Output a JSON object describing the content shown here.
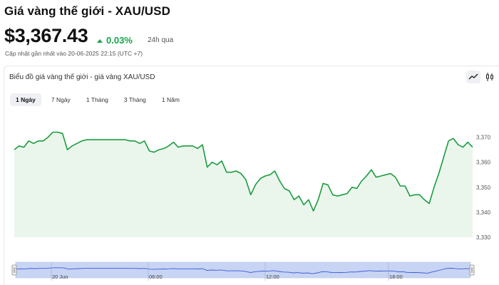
{
  "header": {
    "title": "Giá vàng thế giới - XAU/USD",
    "price": "$3,367.43",
    "change": "0.03%",
    "period": "24h qua",
    "updated": "Cập nhật gần nhất vào 20-06-2025 22:15 (UTC +7)"
  },
  "chart_panel": {
    "title": "Biểu đồ giá vàng thế giới - giá vàng XAU/USD",
    "tabs": [
      {
        "label": "1 Ngày",
        "active": true
      },
      {
        "label": "7 Ngày",
        "active": false
      },
      {
        "label": "1 Tháng",
        "active": false
      },
      {
        "label": "3 Tháng",
        "active": false
      },
      {
        "label": "1 Năm",
        "active": false
      }
    ],
    "tools": [
      "line-chart-icon",
      "candlestick-icon"
    ]
  },
  "colors": {
    "line": "#1a9c3e",
    "area": "#eaf6ec",
    "navigator_fill": "#c7d4f3",
    "navigator_line": "#3b5bdb",
    "up": "#16a34a"
  },
  "chart_data": {
    "type": "area",
    "ylim": [
      3330,
      3375
    ],
    "yticks": [
      "3,370",
      "3,360",
      "3,350",
      "3,340",
      "3,330"
    ],
    "ytick_values": [
      3370,
      3360,
      3350,
      3340,
      3330
    ],
    "values": [
      3365,
      3366.5,
      3366,
      3368.5,
      3367.5,
      3368.5,
      3368.5,
      3370,
      3372,
      3372,
      3371.5,
      3365,
      3366.5,
      3367.5,
      3368.5,
      3369,
      3369,
      3369,
      3369,
      3369,
      3369,
      3369,
      3369,
      3369,
      3368.5,
      3368.5,
      3367.5,
      3368.5,
      3364.5,
      3364,
      3365,
      3365.5,
      3366.5,
      3368,
      3366,
      3366.5,
      3366.5,
      3366.5,
      3365.5,
      3367,
      3358,
      3360,
      3359,
      3360.5,
      3356,
      3356,
      3356.5,
      3355.5,
      3353,
      3347,
      3351,
      3353.5,
      3354.5,
      3355,
      3356.5,
      3352.5,
      3349.5,
      3348.5,
      3345,
      3346.5,
      3343,
      3345,
      3340.5,
      3345,
      3351.5,
      3351,
      3347,
      3346.5,
      3347,
      3347.5,
      3350,
      3349.5,
      3352.5,
      3354.5,
      3357,
      3354,
      3354.5,
      3355,
      3355.5,
      3354,
      3350.5,
      3350.5,
      3346.5,
      3347,
      3347,
      3345,
      3343.5,
      3350,
      3355.5,
      3362,
      3368.5,
      3369.5,
      3367,
      3366,
      3368,
      3366
    ],
    "navigator_labels": [
      "20 Jun",
      "06:00",
      "12:00",
      "18:00"
    ]
  }
}
